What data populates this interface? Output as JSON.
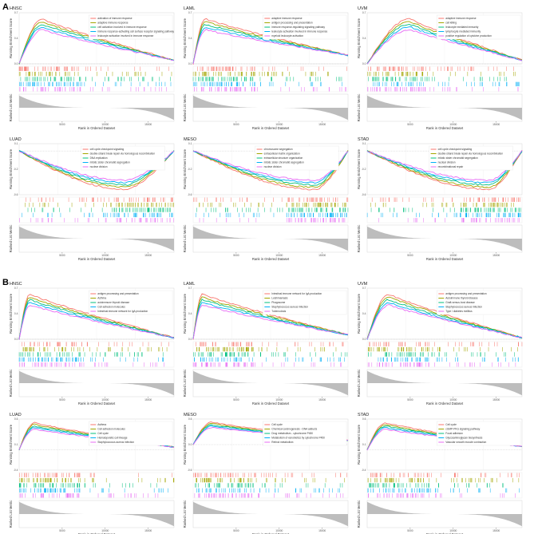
{
  "chart_data": {
    "type": "line",
    "panel_labels": [
      "A",
      "B"
    ],
    "common": {
      "ylabel_top": "Running Enrichment Score",
      "ylabel_bottom": "Ranked List Metric",
      "xlabel": "Rank in Ordered Dataset",
      "x_ticks": [
        5000,
        10000,
        15000
      ]
    },
    "series_colors": [
      "#f8766d",
      "#a3a500",
      "#00bf7d",
      "#00b0f6",
      "#e76bf3"
    ],
    "panels": [
      {
        "section": "A",
        "title": "HNSC",
        "ylim": [
          0,
          0.7
        ],
        "legend": [
          "activation of immune response",
          "adaptive immune response",
          "cell activation involved in immune response",
          "immune response-activating cell surface receptor signaling pathway",
          "leukocyte activation involved in immune response"
        ]
      },
      {
        "section": "A",
        "title": "LAML",
        "ylim": [
          0,
          0.7
        ],
        "legend": [
          "adaptive immune response",
          "antigen processing and presentation",
          "immune response-regulating signaling pathway",
          "leukocyte activation involved in immune response",
          "myeloid leukocyte activation"
        ]
      },
      {
        "section": "A",
        "title": "UVM",
        "ylim": [
          0,
          0.7
        ],
        "legend": [
          "adaptive immune response",
          "cell killing",
          "leukocyte mediated immunity",
          "lymphocyte mediated immunity",
          "positive regulation of cytokine production"
        ]
      },
      {
        "section": "A",
        "title": "LUAD",
        "ylim": [
          -0.6,
          0.1
        ],
        "legend": [
          "cell cycle checkpoint signaling",
          "double-strand break repair via homologous recombination",
          "DNA replication",
          "mitotic sister chromatid segregation",
          "nuclear division"
        ]
      },
      {
        "section": "A",
        "title": "MESO",
        "ylim": [
          -0.6,
          0.1
        ],
        "legend": [
          "chromosome segregation",
          "extracellular matrix organization",
          "extracellular structure organization",
          "mitotic sister chromatid segregation",
          "nuclear division"
        ]
      },
      {
        "section": "A",
        "title": "STAD",
        "ylim": [
          -0.6,
          0.1
        ],
        "legend": [
          "cell cycle checkpoint signaling",
          "double-strand break repair via homologous recombination",
          "mitotic sister chromatid segregation",
          "nuclear division",
          "recombinational repair"
        ]
      },
      {
        "section": "B",
        "title": "HNSC",
        "ylim": [
          0,
          0.7
        ],
        "legend": [
          "antigen processing and presentation",
          "Asthma",
          "autoimmune thyroid disease",
          "Cell adhesion molecules",
          "Intestinal immune network for IgA production"
        ]
      },
      {
        "section": "B",
        "title": "LAML",
        "ylim": [
          0,
          0.7
        ],
        "legend": [
          "Intestinal immune network for IgA production",
          "Leishmaniasis",
          "Phagosome",
          "Staphylococcus aureus infection",
          "Tuberculosis"
        ]
      },
      {
        "section": "B",
        "title": "UVM",
        "ylim": [
          0,
          0.7
        ],
        "legend": [
          "antigen processing and presentation",
          "Autoimmune thyroid disease",
          "Graft-versus-host disease",
          "Staphylococcus aureus infection",
          "Type I diabetes mellitus"
        ]
      },
      {
        "section": "B",
        "title": "LUAD",
        "ylim": [
          -0.4,
          0.6
        ],
        "legend": [
          "Asthma",
          "Cell adhesion molecules",
          "Cell cycle",
          "Hematopoietic cell lineage",
          "Staphylococcus aureus infection"
        ]
      },
      {
        "section": "B",
        "title": "MESO",
        "ylim": [
          -0.6,
          0.6
        ],
        "legend": [
          "Cell cycle",
          "Chemical carcinogenesis - DNA adducts",
          "Drug metabolism - cytochrome P450",
          "Metabolism of xenobiotics by cytochrome P450",
          "Retinol metabolism"
        ]
      },
      {
        "section": "B",
        "title": "STAD",
        "ylim": [
          -0.4,
          0.6
        ],
        "legend": [
          "Cell cycle",
          "cGMP-PKG signaling pathway",
          "Focal adhesion",
          "Glycosaminoglycan biosynthesis",
          "Vascular smooth muscle contraction"
        ]
      }
    ]
  }
}
